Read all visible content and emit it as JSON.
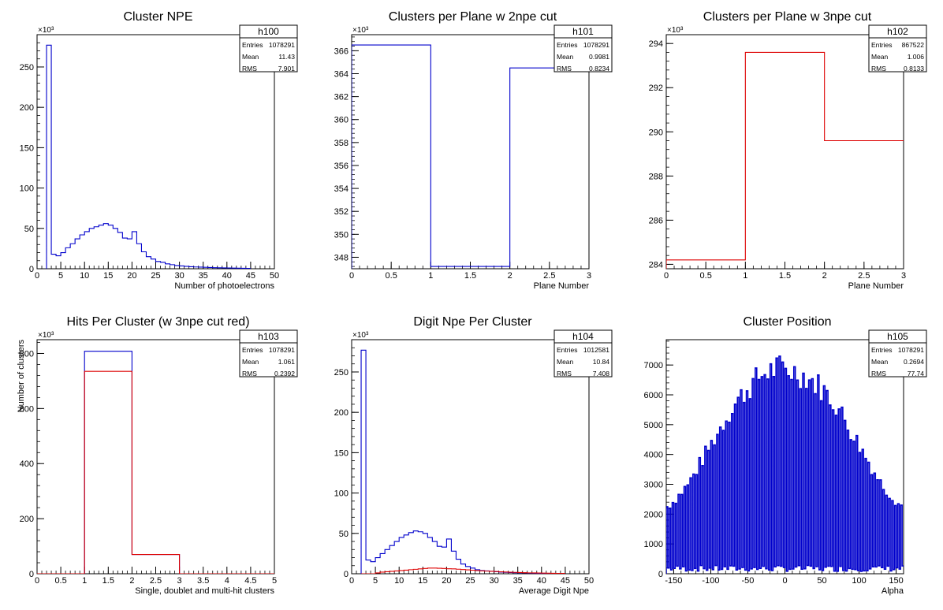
{
  "chart_data": [
    {
      "type": "histogram",
      "title": "Cluster NPE",
      "xlabel": "Number of photoelectrons",
      "ylabel": "",
      "exponent_label": "×10³",
      "xlim": [
        0,
        50
      ],
      "ylim": [
        0,
        290
      ],
      "xticks": [
        0,
        5,
        10,
        15,
        20,
        25,
        30,
        35,
        40,
        45,
        50
      ],
      "yticks": [
        0,
        50,
        100,
        150,
        200,
        250
      ],
      "stats": {
        "name": "h100",
        "rows": [
          {
            "label": "Entries",
            "value": "1078291"
          },
          {
            "label": "Mean",
            "value": "11.43"
          },
          {
            "label": "RMS",
            "value": "7.901"
          }
        ]
      },
      "series": [
        {
          "color": "#0000cc",
          "x_start": 2,
          "bin_width": 1,
          "values": [
            277,
            18,
            16,
            20,
            26,
            31,
            37,
            42,
            46,
            50,
            52,
            54,
            56,
            54,
            50,
            45,
            38,
            37,
            46,
            31,
            21,
            15,
            12,
            9,
            8,
            6,
            5,
            4,
            3.5,
            3,
            2.5,
            2.2,
            2,
            1.8,
            1.5,
            1.3,
            1.2,
            1,
            0.9,
            0.8,
            0.7,
            0.6,
            0.5
          ]
        }
      ]
    },
    {
      "type": "histogram",
      "title": "Clusters per Plane w 2npe cut",
      "xlabel": "Plane Number",
      "ylabel": "",
      "exponent_label": "×10³",
      "xlim": [
        0,
        3
      ],
      "ylim": [
        347,
        367.4
      ],
      "xticks": [
        0,
        0.5,
        1,
        1.5,
        2,
        2.5,
        3
      ],
      "yticks": [
        348,
        350,
        352,
        354,
        356,
        358,
        360,
        362,
        364,
        366
      ],
      "stats": {
        "name": "h101",
        "rows": [
          {
            "label": "Entries",
            "value": "1078291"
          },
          {
            "label": "Mean",
            "value": "0.9981"
          },
          {
            "label": "RMS",
            "value": "0.8234"
          }
        ]
      },
      "series": [
        {
          "color": "#0000cc",
          "x_start": 0,
          "bin_width": 1,
          "values": [
            366.5,
            347.2,
            364.5
          ]
        }
      ]
    },
    {
      "type": "histogram",
      "title": "Clusters per Plane w 3npe cut",
      "xlabel": "Plane Number",
      "ylabel": "",
      "exponent_label": "×10³",
      "xlim": [
        0,
        3
      ],
      "ylim": [
        283.8,
        294.4
      ],
      "xticks": [
        0,
        0.5,
        1,
        1.5,
        2,
        2.5,
        3
      ],
      "yticks": [
        284,
        286,
        288,
        290,
        292,
        294
      ],
      "stats": {
        "name": "h102",
        "rows": [
          {
            "label": "Entries",
            "value": "867522"
          },
          {
            "label": "Mean",
            "value": "1.006"
          },
          {
            "label": "RMS",
            "value": "0.8133"
          }
        ]
      },
      "series": [
        {
          "color": "#dd0000",
          "x_start": 0,
          "bin_width": 1,
          "values": [
            284.2,
            293.6,
            289.6
          ]
        }
      ]
    },
    {
      "type": "histogram",
      "title": "Hits Per Cluster (w 3npe cut red)",
      "xlabel": "Single, doublet and multi-hit clusters",
      "ylabel": "Number of clusters",
      "exponent_label": "×10³",
      "xlim": [
        0,
        5
      ],
      "ylim": [
        0,
        850
      ],
      "xticks": [
        0,
        0.5,
        1,
        1.5,
        2,
        2.5,
        3,
        3.5,
        4,
        4.5,
        5
      ],
      "yticks": [
        0,
        200,
        400,
        600,
        800
      ],
      "stats": {
        "name": "h103",
        "rows": [
          {
            "label": "Entries",
            "value": "1078291"
          },
          {
            "label": "Mean",
            "value": "1.061"
          },
          {
            "label": "RMS",
            "value": "0.2392"
          }
        ]
      },
      "series": [
        {
          "color": "#0000cc",
          "x_start": 0,
          "bin_width": 1,
          "values": [
            0,
            808,
            70,
            0,
            0
          ]
        },
        {
          "color": "#dd0000",
          "x_start": 0,
          "bin_width": 1,
          "values": [
            0,
            735,
            70,
            0,
            0
          ]
        }
      ]
    },
    {
      "type": "histogram",
      "title": "Digit Npe Per Cluster",
      "xlabel": "Average Digit Npe",
      "ylabel": "",
      "exponent_label": "×10³",
      "xlim": [
        0,
        50
      ],
      "ylim": [
        0,
        290
      ],
      "xticks": [
        0,
        5,
        10,
        15,
        20,
        25,
        30,
        35,
        40,
        45,
        50
      ],
      "yticks": [
        0,
        50,
        100,
        150,
        200,
        250
      ],
      "stats": {
        "name": "h104",
        "rows": [
          {
            "label": "Entries",
            "value": "1012581"
          },
          {
            "label": "Mean",
            "value": "10.84"
          },
          {
            "label": "RMS",
            "value": "7.408"
          }
        ]
      },
      "series": [
        {
          "color": "#0000cc",
          "x_start": 2,
          "bin_width": 1,
          "values": [
            277,
            17,
            15,
            20,
            25,
            30,
            35,
            40,
            45,
            48,
            51,
            53,
            52,
            50,
            45,
            40,
            34,
            33,
            43,
            28,
            18,
            12,
            9,
            7,
            5,
            4,
            3.5,
            3,
            2.5,
            2,
            1.8,
            1.5,
            1.3,
            1.1,
            1,
            0.8,
            0.7,
            0.6,
            0.5,
            0.4,
            0.3,
            0.3,
            0.2
          ]
        },
        {
          "color": "#dd0000",
          "x_start": 2,
          "bin_width": 1,
          "values": [
            0,
            0,
            0,
            1,
            2,
            2.5,
            3,
            3.5,
            4,
            4.5,
            5,
            5.5,
            6,
            6.5,
            7,
            7,
            6.8,
            6.5,
            6.2,
            6,
            5.6,
            5.2,
            4.8,
            4.4,
            4,
            3.6,
            3.3,
            3,
            2.7,
            2.4,
            2.1,
            1.9,
            1.7,
            1.5,
            1.3,
            1.1,
            1,
            0.9,
            0.8,
            0.7,
            0.6,
            0.5,
            0.4
          ]
        }
      ]
    },
    {
      "type": "histogram",
      "title": "Cluster Position",
      "xlabel": "Alpha",
      "ylabel": "",
      "exponent_label": "",
      "xlim": [
        -160,
        160
      ],
      "ylim": [
        0,
        7850
      ],
      "xticks": [
        -150,
        -100,
        -50,
        0,
        50,
        100,
        150
      ],
      "yticks": [
        0,
        1000,
        2000,
        3000,
        4000,
        5000,
        6000,
        7000
      ],
      "stats": {
        "name": "h105",
        "rows": [
          {
            "label": "Entries",
            "value": "1078291"
          },
          {
            "label": "Mean",
            "value": "0.2694"
          },
          {
            "label": "RMS",
            "value": "77.74"
          }
        ]
      },
      "series": [
        {
          "color": "#0000cc",
          "x_start": -160,
          "bin_width": 2,
          "style": "spiky",
          "envelope": [
            [
              -160,
              2300
            ],
            [
              -150,
              2500
            ],
            [
              -130,
              3100
            ],
            [
              -110,
              4000
            ],
            [
              -90,
              4900
            ],
            [
              -70,
              5800
            ],
            [
              -50,
              6400
            ],
            [
              -30,
              6900
            ],
            [
              -10,
              7100
            ],
            [
              10,
              7000
            ],
            [
              30,
              6800
            ],
            [
              50,
              6400
            ],
            [
              70,
              5800
            ],
            [
              90,
              4900
            ],
            [
              110,
              4000
            ],
            [
              130,
              3100
            ],
            [
              150,
              2500
            ],
            [
              160,
              2300
            ]
          ]
        }
      ]
    }
  ]
}
